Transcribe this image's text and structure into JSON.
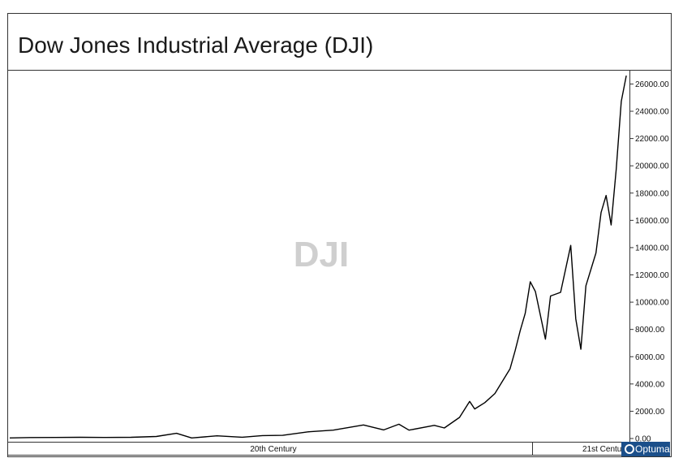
{
  "chart_data": {
    "type": "line",
    "title": "Dow Jones Industrial Average (DJI)",
    "watermark": "DJI",
    "ylim": [
      0,
      26800
    ],
    "y_ticks": [
      "0.00",
      "2000.00",
      "4000.00",
      "6000.00",
      "8000.00",
      "10000.00",
      "12000.00",
      "14000.00",
      "16000.00",
      "18000.00",
      "20000.00",
      "22000.00",
      "24000.00",
      "26000.00"
    ],
    "x_ticks": [
      "20th Century",
      "21st Century"
    ],
    "xlim": [
      1896,
      2018.3
    ],
    "grid": false,
    "series": [
      {
        "color": "#000000",
        "x": [
          1896,
          1900,
          1905,
          1910,
          1915,
          1920,
          1925,
          1929,
          1932,
          1937,
          1942,
          1946,
          1950,
          1955,
          1960,
          1966,
          1970,
          1973,
          1975,
          1980,
          1982,
          1985,
          1987,
          1988,
          1990,
          1992,
          1995,
          1996,
          1997,
          1998,
          1999,
          2000,
          2002,
          2003,
          2005,
          2007,
          2008,
          2009,
          2010,
          2012,
          2013,
          2014,
          2015,
          2016,
          2017,
          2018
        ],
        "y": [
          40,
          70,
          80,
          90,
          80,
          90,
          150,
          381,
          41,
          194,
          93,
          212,
          235,
          488,
          616,
          995,
          631,
          1051,
          616,
          963,
          777,
          1546,
          2722,
          2168,
          2633,
          3301,
          5117,
          6448,
          7908,
          9181,
          11497,
          10787,
          7286,
          10453,
          10718,
          14164,
          8776,
          6547,
          11205,
          13610,
          16576,
          17823,
          15666,
          19762,
          24719,
          26617
        ]
      }
    ]
  },
  "brand": {
    "name": "Optuma"
  }
}
